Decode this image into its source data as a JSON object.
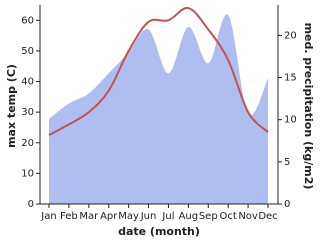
{
  "chart_data": {
    "type": "line",
    "x_label": "date (month)",
    "y_label": "max temp (C)",
    "y2_label": "med. precipitation (kg/m2)",
    "categories": [
      "Jan",
      "Feb",
      "Mar",
      "Apr",
      "May",
      "Jun",
      "Jul",
      "Aug",
      "Sep",
      "Oct",
      "Nov",
      "Dec"
    ],
    "series": [
      {
        "name": "max temp",
        "color": "#bf5551",
        "values": [
          22.5,
          26,
          30,
          37,
          50,
          59.5,
          60,
          64,
          57,
          47,
          30,
          23.5
        ]
      },
      {
        "name": "med. precipitation",
        "color": "#b0bdf1",
        "axis": "y2",
        "area": true,
        "values": [
          10.1,
          11.9,
          13.1,
          15.5,
          18,
          20.7,
          15.5,
          21,
          16.7,
          22.4,
          10.7,
          14.9
        ]
      }
    ],
    "ylim": [
      0,
      65
    ],
    "yticks": [
      0,
      10,
      20,
      30,
      40,
      50,
      60
    ],
    "y2lim": [
      0,
      23.6
    ],
    "y2ticks": [
      0,
      5,
      10,
      15,
      20
    ]
  }
}
